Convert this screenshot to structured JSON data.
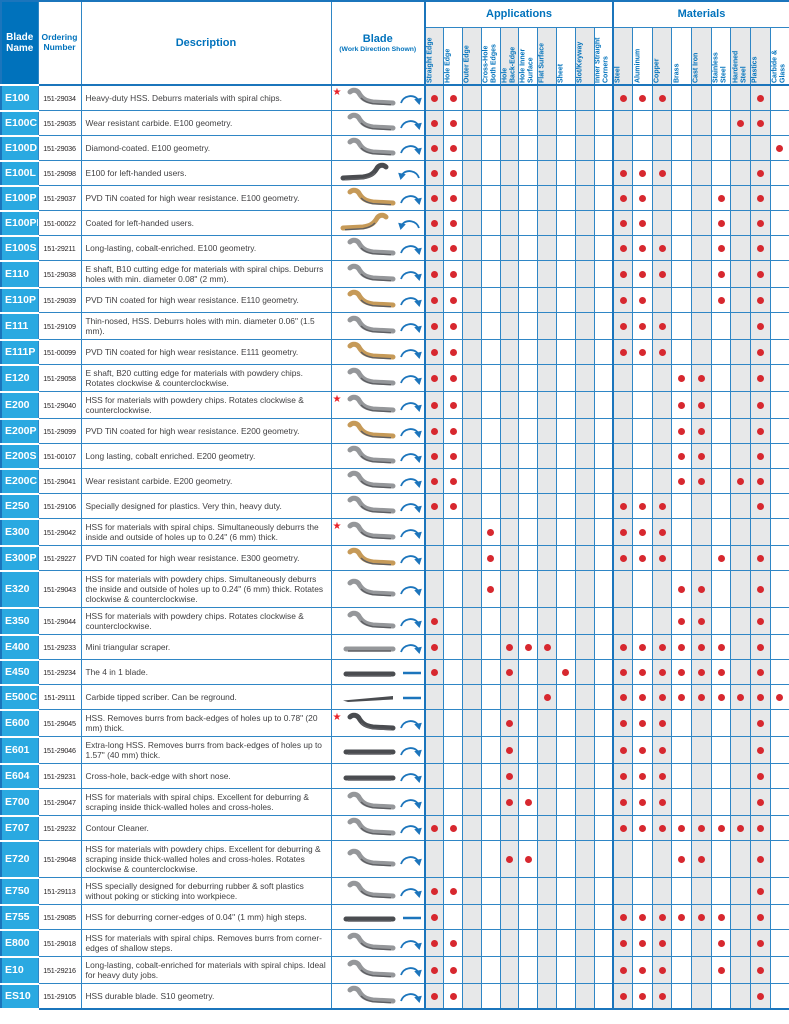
{
  "header": {
    "blade_name_label": "Blade\nName",
    "ordering_number_label": "Ordering\nNumber",
    "description_label": "Description",
    "blade_label": "Blade",
    "blade_sublabel": "(Work Direction Shown)",
    "applications_title": "Applications",
    "materials_title": "Materials",
    "application_columns": [
      "Straight Edge",
      "Hole Edge",
      "Outer Edge",
      "Cross-Hole\nBoth Edges",
      "Hole\nBack-Edge",
      "Hole Inner\nSurface",
      "Flat Surface",
      "Sheet",
      "Slot/Keyway",
      "Inner Straight\nCorners"
    ],
    "material_columns": [
      "Steel",
      "Aluminum",
      "Copper",
      "Brass",
      "Cast Iron",
      "Stainless\nSteel",
      "Hardened\nSteel",
      "Plastics",
      "Carbide &\nGlass"
    ]
  },
  "icons": {
    "featured_star": "★"
  },
  "colors": {
    "header_blue": "#0072BC",
    "row_label_blue": "#2AA9E1",
    "grid_blue": "#2F86C5",
    "border_blue": "#1B75BC",
    "dot_red": "#D7282F",
    "star_red": "#E8242B",
    "shaded_column": "#E7E8E9",
    "blade_steel": "#95979A",
    "blade_tin_gold": "#C69A58",
    "blade_dark": "#4A4C50",
    "arrow_blue": "#1C75BC"
  },
  "rows": [
    {
      "name": "E100",
      "ordering_number": "151-29034",
      "description": "Heavy-duty HSS. Deburrs materials with spiral chips.",
      "featured": true,
      "blade": {
        "shape": "s-curve",
        "finish": "steel",
        "flipped": false,
        "direction": "arc"
      },
      "applications": [
        0,
        1
      ],
      "materials": [
        0,
        1,
        2,
        7
      ]
    },
    {
      "name": "E100C",
      "ordering_number": "151-29035",
      "description": "Wear resistant carbide. E100 geometry.",
      "featured": false,
      "blade": {
        "shape": "s-curve",
        "finish": "steel",
        "flipped": false,
        "direction": "arc"
      },
      "applications": [
        0,
        1
      ],
      "materials": [
        6,
        7
      ]
    },
    {
      "name": "E100D",
      "ordering_number": "151-29036",
      "description": "Diamond-coated. E100 geometry.",
      "featured": false,
      "blade": {
        "shape": "s-curve",
        "finish": "steel",
        "flipped": false,
        "direction": "arc"
      },
      "applications": [
        0,
        1
      ],
      "materials": [
        8
      ]
    },
    {
      "name": "E100L",
      "ordering_number": "151-29098",
      "description": "E100 for left-handed users.",
      "featured": false,
      "blade": {
        "shape": "s-curve",
        "finish": "dark",
        "flipped": true,
        "direction": "arc"
      },
      "applications": [
        0,
        1
      ],
      "materials": [
        0,
        1,
        2,
        7
      ]
    },
    {
      "name": "E100P",
      "ordering_number": "151-29037",
      "description": "PVD TiN coated for high wear resistance. E100 geometry.",
      "featured": false,
      "blade": {
        "shape": "s-curve",
        "finish": "tin",
        "flipped": false,
        "direction": "arc"
      },
      "applications": [
        0,
        1
      ],
      "materials": [
        0,
        1,
        5,
        7
      ]
    },
    {
      "name": "E100PL",
      "ordering_number": "151-00022",
      "description": "Coated for left-handed users.",
      "featured": false,
      "blade": {
        "shape": "s-curve",
        "finish": "tin",
        "flipped": true,
        "direction": "arc"
      },
      "applications": [
        0,
        1
      ],
      "materials": [
        0,
        1,
        5,
        7
      ]
    },
    {
      "name": "E100S",
      "ordering_number": "151-29211",
      "description": "Long-lasting, cobalt-enriched. E100 geometry.",
      "featured": false,
      "blade": {
        "shape": "s-curve",
        "finish": "steel",
        "flipped": false,
        "direction": "arc"
      },
      "applications": [
        0,
        1
      ],
      "materials": [
        0,
        1,
        2,
        5,
        7
      ]
    },
    {
      "name": "E110",
      "ordering_number": "151-29038",
      "description": "E shaft, B10 cutting edge for materials with spiral chips. Deburrs holes with min. diameter 0.08\" (2 mm).",
      "featured": false,
      "blade": {
        "shape": "s-curve",
        "finish": "steel",
        "flipped": false,
        "direction": "arc"
      },
      "applications": [
        0,
        1
      ],
      "materials": [
        0,
        1,
        2,
        5,
        7
      ]
    },
    {
      "name": "E110P",
      "ordering_number": "151-29039",
      "description": "PVD TiN coated for high wear resistance. E110 geometry.",
      "featured": false,
      "blade": {
        "shape": "s-curve",
        "finish": "tin",
        "flipped": false,
        "direction": "arc"
      },
      "applications": [
        0,
        1
      ],
      "materials": [
        0,
        1,
        5,
        7
      ]
    },
    {
      "name": "E111",
      "ordering_number": "151-29109",
      "description": "Thin-nosed, HSS. Deburrs holes with min. diameter 0.06\" (1.5 mm).",
      "featured": false,
      "blade": {
        "shape": "s-curve",
        "finish": "steel",
        "flipped": false,
        "direction": "arc"
      },
      "applications": [
        0,
        1
      ],
      "materials": [
        0,
        1,
        2,
        7
      ]
    },
    {
      "name": "E111P",
      "ordering_number": "151-00099",
      "description": "PVD TiN coated for high wear resistance. E111 geometry.",
      "featured": false,
      "blade": {
        "shape": "s-curve",
        "finish": "tin",
        "flipped": false,
        "direction": "arc"
      },
      "applications": [
        0,
        1
      ],
      "materials": [
        0,
        1,
        2,
        7
      ]
    },
    {
      "name": "E120",
      "ordering_number": "151-29058",
      "description": "E shaft, B20 cutting edge for materials with powdery chips. Rotates clockwise & counterclockwise.",
      "featured": false,
      "blade": {
        "shape": "s-curve",
        "finish": "steel",
        "flipped": false,
        "direction": "arc"
      },
      "applications": [
        0,
        1
      ],
      "materials": [
        3,
        4,
        7
      ]
    },
    {
      "name": "E200",
      "ordering_number": "151-29040",
      "description": "HSS for materials with powdery chips. Rotates clockwise & counterclockwise.",
      "featured": true,
      "blade": {
        "shape": "s-curve",
        "finish": "steel",
        "flipped": false,
        "direction": "arc"
      },
      "applications": [
        0,
        1
      ],
      "materials": [
        3,
        4,
        7
      ]
    },
    {
      "name": "E200P",
      "ordering_number": "151-29099",
      "description": "PVD TiN coated for high wear resistance. E200 geometry.",
      "featured": false,
      "blade": {
        "shape": "s-curve",
        "finish": "tin",
        "flipped": false,
        "direction": "arc"
      },
      "applications": [
        0,
        1
      ],
      "materials": [
        3,
        4,
        7
      ]
    },
    {
      "name": "E200S",
      "ordering_number": "151-00107",
      "description": "Long lasting, cobalt enriched. E200 geometry.",
      "featured": false,
      "blade": {
        "shape": "s-curve",
        "finish": "steel",
        "flipped": false,
        "direction": "arc"
      },
      "applications": [
        0,
        1
      ],
      "materials": [
        3,
        4,
        7
      ]
    },
    {
      "name": "E200C",
      "ordering_number": "151-29041",
      "description": "Wear resistant carbide. E200 geometry.",
      "featured": false,
      "blade": {
        "shape": "s-curve",
        "finish": "steel",
        "flipped": false,
        "direction": "arc"
      },
      "applications": [
        0,
        1
      ],
      "materials": [
        3,
        4,
        6,
        7
      ]
    },
    {
      "name": "E250",
      "ordering_number": "151-29106",
      "description": "Specially designed for plastics. Very thin, heavy duty.",
      "featured": false,
      "blade": {
        "shape": "s-curve",
        "finish": "steel",
        "flipped": false,
        "direction": "arc"
      },
      "applications": [
        0,
        1
      ],
      "materials": [
        0,
        1,
        2,
        7
      ]
    },
    {
      "name": "E300",
      "ordering_number": "151-29042",
      "description": "HSS for materials with spiral chips. Simultaneously deburrs the inside and outside of holes up to 0.24\" (6 mm) thick.",
      "featured": true,
      "blade": {
        "shape": "s-curve",
        "finish": "steel",
        "flipped": false,
        "direction": "arc"
      },
      "applications": [
        3
      ],
      "materials": [
        0,
        1,
        2
      ]
    },
    {
      "name": "E300P",
      "ordering_number": "151-29227",
      "description": "PVD TiN coated for high wear resistance. E300 geometry.",
      "featured": false,
      "blade": {
        "shape": "s-curve",
        "finish": "tin",
        "flipped": false,
        "direction": "arc"
      },
      "applications": [
        3
      ],
      "materials": [
        0,
        1,
        2,
        5,
        7
      ]
    },
    {
      "name": "E320",
      "ordering_number": "151-29043",
      "description": "HSS for materials with powdery chips. Simultaneously deburrs the inside and outside of holes up to 0.24\" (6 mm) thick. Rotates clockwise & counterclockwise.",
      "featured": false,
      "blade": {
        "shape": "s-curve",
        "finish": "steel",
        "flipped": false,
        "direction": "arc"
      },
      "applications": [
        3
      ],
      "materials": [
        3,
        4,
        7
      ]
    },
    {
      "name": "E350",
      "ordering_number": "151-29044",
      "description": "HSS for materials with powdery chips. Rotates clockwise & counterclockwise.",
      "featured": false,
      "blade": {
        "shape": "s-curve",
        "finish": "steel",
        "flipped": false,
        "direction": "arc"
      },
      "applications": [
        0
      ],
      "materials": [
        3,
        4,
        7
      ]
    },
    {
      "name": "E400",
      "ordering_number": "151-29233",
      "description": "Mini triangular scraper.",
      "featured": false,
      "blade": {
        "shape": "flat",
        "finish": "steel",
        "flipped": false,
        "direction": "arc"
      },
      "applications": [
        0,
        4,
        5,
        6
      ],
      "materials": [
        0,
        1,
        2,
        3,
        4,
        5,
        7
      ]
    },
    {
      "name": "E450",
      "ordering_number": "151-29234",
      "description": "The 4 in 1 blade.",
      "featured": false,
      "blade": {
        "shape": "flat",
        "finish": "dark",
        "flipped": false,
        "direction": "line"
      },
      "applications": [
        0,
        4,
        7
      ],
      "materials": [
        0,
        1,
        2,
        3,
        4,
        5,
        7
      ]
    },
    {
      "name": "E500C",
      "ordering_number": "151-29111",
      "description": "Carbide tipped scriber. Can be reground.",
      "featured": false,
      "blade": {
        "shape": "scriber",
        "finish": "dark",
        "flipped": false,
        "direction": "line"
      },
      "applications": [
        6
      ],
      "materials": [
        0,
        1,
        2,
        3,
        4,
        5,
        6,
        7,
        8
      ]
    },
    {
      "name": "E600",
      "ordering_number": "151-29045",
      "description": "HSS. Removes burrs from back-edges of holes up to 0.78\" (20 mm) thick.",
      "featured": true,
      "blade": {
        "shape": "s-curve",
        "finish": "dark",
        "flipped": false,
        "direction": "arc"
      },
      "applications": [
        4
      ],
      "materials": [
        0,
        1,
        2,
        7
      ]
    },
    {
      "name": "E601",
      "ordering_number": "151-29046",
      "description": "Extra-long HSS. Removes burrs from back-edges of holes up to 1.57\" (40 mm) thick.",
      "featured": false,
      "blade": {
        "shape": "flat",
        "finish": "dark",
        "flipped": false,
        "direction": "arc"
      },
      "applications": [
        4
      ],
      "materials": [
        0,
        1,
        2,
        7
      ]
    },
    {
      "name": "E604",
      "ordering_number": "151-29231",
      "description": "Cross-hole, back-edge with short nose.",
      "featured": false,
      "blade": {
        "shape": "flat",
        "finish": "dark",
        "flipped": false,
        "direction": "arc"
      },
      "applications": [
        4
      ],
      "materials": [
        0,
        1,
        2,
        7
      ]
    },
    {
      "name": "E700",
      "ordering_number": "151-29047",
      "description": "HSS for materials with spiral chips. Excellent for deburring & scraping inside thick-walled holes and cross-holes.",
      "featured": false,
      "blade": {
        "shape": "s-curve",
        "finish": "steel",
        "flipped": false,
        "direction": "arc"
      },
      "applications": [
        4,
        5
      ],
      "materials": [
        0,
        1,
        2,
        7
      ]
    },
    {
      "name": "E707",
      "ordering_number": "151-29232",
      "description": "Contour Cleaner.",
      "featured": false,
      "blade": {
        "shape": "s-curve",
        "finish": "steel",
        "flipped": false,
        "direction": "arc"
      },
      "applications": [
        0,
        1
      ],
      "materials": [
        0,
        1,
        2,
        3,
        4,
        5,
        6,
        7
      ]
    },
    {
      "name": "E720",
      "ordering_number": "151-29048",
      "description": "HSS for materials with powdery chips. Excellent for deburring & scraping inside thick-walled holes and cross-holes. Rotates clockwise & counterclockwise.",
      "featured": false,
      "blade": {
        "shape": "s-curve",
        "finish": "steel",
        "flipped": false,
        "direction": "arc"
      },
      "applications": [
        4,
        5
      ],
      "materials": [
        3,
        4,
        7
      ]
    },
    {
      "name": "E750",
      "ordering_number": "151-29113",
      "description": "HSS specially designed for deburring rubber & soft plastics without poking or sticking into workpiece.",
      "featured": false,
      "blade": {
        "shape": "s-curve",
        "finish": "steel",
        "flipped": false,
        "direction": "arc"
      },
      "applications": [
        0,
        1
      ],
      "materials": [
        7
      ]
    },
    {
      "name": "E755",
      "ordering_number": "151-29085",
      "description": "HSS for deburring corner-edges of 0.04\" (1 mm) high steps.",
      "featured": false,
      "blade": {
        "shape": "flat",
        "finish": "dark",
        "flipped": false,
        "direction": "line"
      },
      "applications": [
        0
      ],
      "materials": [
        0,
        1,
        2,
        3,
        4,
        5,
        7
      ]
    },
    {
      "name": "E800",
      "ordering_number": "151-29018",
      "description": "HSS for materials with spiral chips. Removes burrs from corner-edges of shallow steps.",
      "featured": false,
      "blade": {
        "shape": "s-curve",
        "finish": "steel",
        "flipped": false,
        "direction": "arc"
      },
      "applications": [
        0,
        1
      ],
      "materials": [
        0,
        1,
        2,
        5,
        7
      ]
    },
    {
      "name": "E10",
      "ordering_number": "151-29216",
      "description": "Long-lasting, cobalt-enriched for materials with spiral chips. Ideal for heavy duty jobs.",
      "featured": false,
      "blade": {
        "shape": "s-curve",
        "finish": "steel",
        "flipped": false,
        "direction": "arc"
      },
      "applications": [
        0,
        1
      ],
      "materials": [
        0,
        1,
        2,
        5,
        7
      ]
    },
    {
      "name": "ES10",
      "ordering_number": "151-29105",
      "description": "HSS durable blade. S10 geometry.",
      "featured": false,
      "blade": {
        "shape": "s-curve",
        "finish": "steel",
        "flipped": false,
        "direction": "arc"
      },
      "applications": [
        0,
        1
      ],
      "materials": [
        0,
        1,
        2,
        7
      ]
    }
  ]
}
